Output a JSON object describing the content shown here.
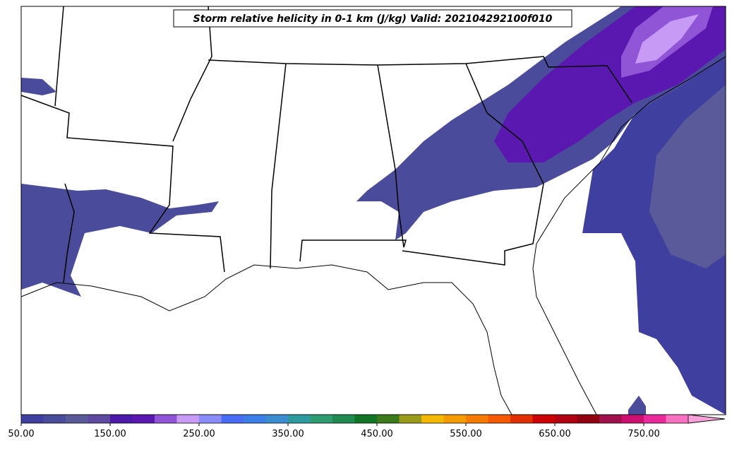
{
  "map": {
    "title": "Storm relative helicity in 0-1 km (J/kg) Valid: 202104292100f010",
    "colorbar": {
      "range": [
        50,
        800
      ],
      "colors": [
        "#3f3f9f",
        "#4b4b9b",
        "#5a5a9a",
        "#5d4aa0",
        "#4b1aa6",
        "#5a18b0",
        "#8f55d6",
        "#c79bf5",
        "#8a8cf7",
        "#4a6cf5",
        "#3a7ee6",
        "#3a8ed0",
        "#2e9aa0",
        "#2e9a70",
        "#208a50",
        "#127525",
        "#3a7a1a",
        "#9a9a1a",
        "#f5b800",
        "#f59a00",
        "#f57a00",
        "#f55a00",
        "#e03000",
        "#cc0000",
        "#b00010",
        "#900010",
        "#a0104a",
        "#cc1070",
        "#e82a9a",
        "#f870c0"
      ],
      "extend_color": "#f8a0d8",
      "ticks": [
        {
          "value": 50,
          "label": "50.00"
        },
        {
          "value": 150,
          "label": "150.00"
        },
        {
          "value": 250,
          "label": "250.00"
        },
        {
          "value": 350,
          "label": "350.00"
        },
        {
          "value": 450,
          "label": "450.00"
        },
        {
          "value": 550,
          "label": "550.00"
        },
        {
          "value": 650,
          "label": "650.00"
        },
        {
          "value": 750,
          "label": "750.00"
        }
      ]
    }
  }
}
